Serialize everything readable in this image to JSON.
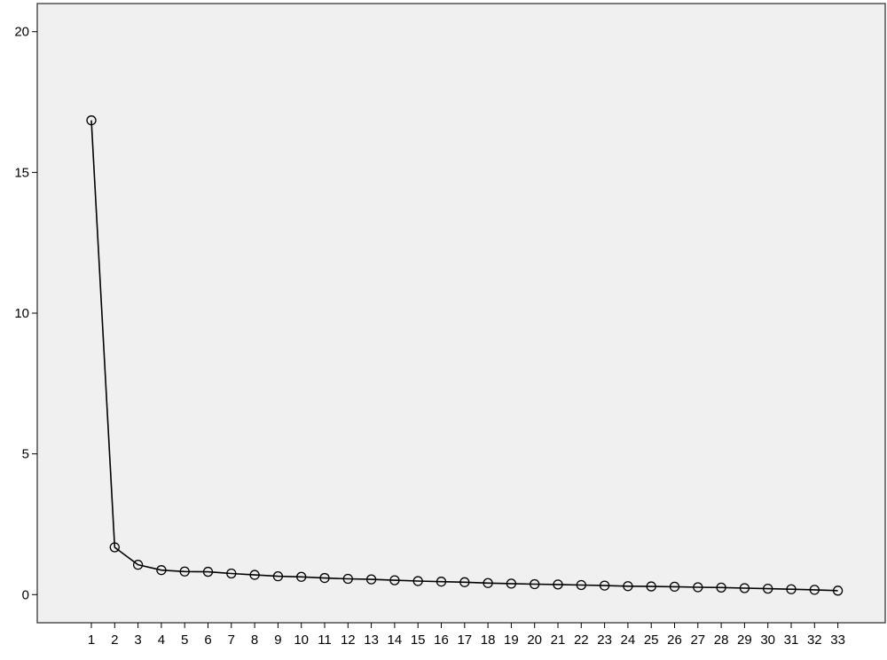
{
  "chart_data": {
    "type": "line",
    "categories": [
      "1",
      "2",
      "3",
      "4",
      "5",
      "6",
      "7",
      "8",
      "9",
      "10",
      "11",
      "12",
      "13",
      "14",
      "15",
      "16",
      "17",
      "18",
      "19",
      "20",
      "21",
      "22",
      "23",
      "24",
      "25",
      "26",
      "27",
      "28",
      "29",
      "30",
      "31",
      "32",
      "33"
    ],
    "series": [
      {
        "values": [
          16.85,
          1.68,
          1.06,
          0.87,
          0.82,
          0.81,
          0.75,
          0.7,
          0.65,
          0.63,
          0.59,
          0.56,
          0.54,
          0.51,
          0.48,
          0.46,
          0.44,
          0.41,
          0.39,
          0.37,
          0.36,
          0.34,
          0.32,
          0.3,
          0.29,
          0.28,
          0.26,
          0.25,
          0.23,
          0.21,
          0.19,
          0.17,
          0.14
        ]
      }
    ],
    "ylim": [
      -1.0,
      21.0
    ],
    "yticks": [
      0,
      5,
      10,
      15,
      20
    ],
    "ytick_labels": [
      "0",
      "5",
      "10",
      "15",
      "20"
    ],
    "title": "",
    "xlabel": "",
    "ylabel": "",
    "grid": false,
    "marker": "open-circle",
    "colors": {
      "plot_background": "#f0f0f0",
      "line": "#000000",
      "axis": "#000000"
    }
  }
}
